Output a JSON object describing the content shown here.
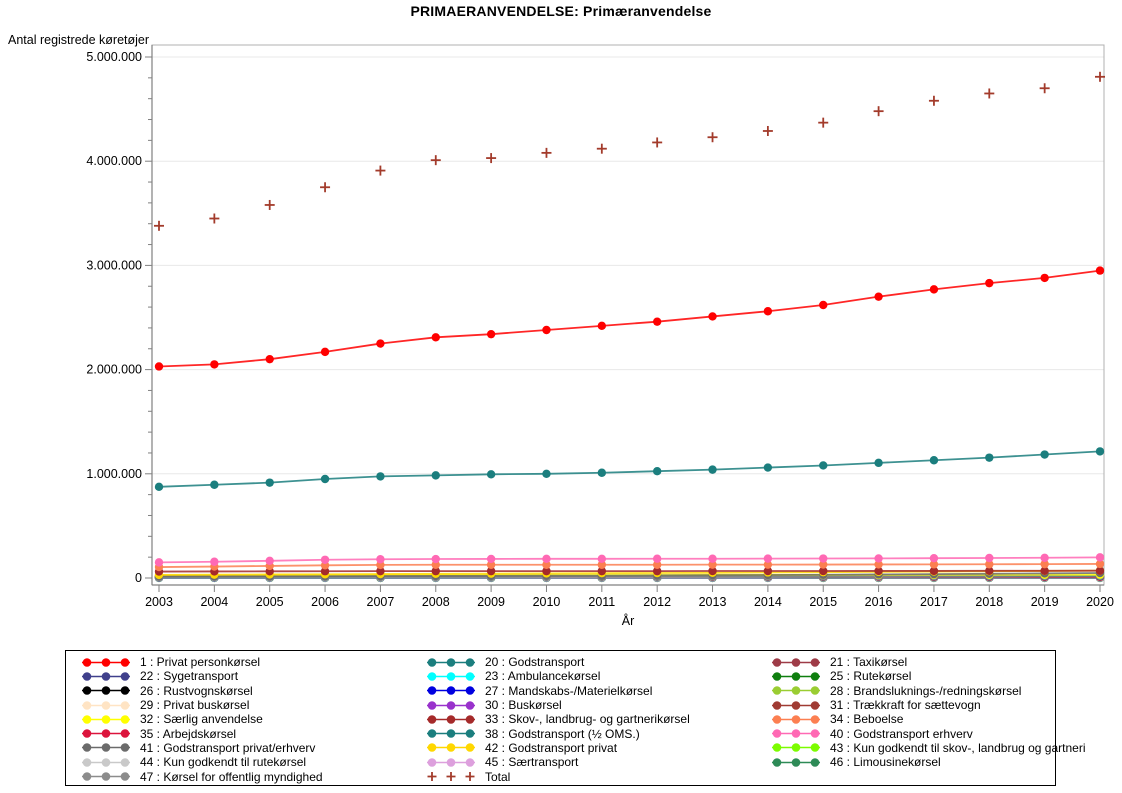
{
  "chart_data": {
    "type": "line",
    "title": "PRIMAERANVENDELSE: Primæranvendelse",
    "xlabel": "År",
    "ylabel": "Antal registrede køretøjer",
    "x": [
      2003,
      2004,
      2005,
      2006,
      2007,
      2008,
      2009,
      2010,
      2011,
      2012,
      2013,
      2014,
      2015,
      2016,
      2017,
      2018,
      2019,
      2020
    ],
    "ylim": [
      0,
      5000000
    ],
    "y_ticks": [
      {
        "v": 0,
        "label": "0"
      },
      {
        "v": 1000000,
        "label": "1.000.000"
      },
      {
        "v": 2000000,
        "label": "2.000.000"
      },
      {
        "v": 3000000,
        "label": "3.000.000"
      },
      {
        "v": 4000000,
        "label": "4.000.000"
      },
      {
        "v": 5000000,
        "label": "5.000.000"
      }
    ],
    "y_minor_step": 200000,
    "grid": "horizontal-major",
    "legend_position": "bottom",
    "frame_color": "#B0B0B0",
    "axis_color": "#808080",
    "grid_color": "#E8E8E8",
    "series": [
      {
        "code": "1",
        "label": "1 : Privat personkørsel",
        "color": "#FF0000",
        "marker": "circle",
        "values": [
          2030000,
          2050000,
          2100000,
          2170000,
          2250000,
          2310000,
          2340000,
          2380000,
          2420000,
          2460000,
          2510000,
          2560000,
          2620000,
          2700000,
          2770000,
          2830000,
          2880000,
          2950000
        ]
      },
      {
        "code": "20",
        "label": "20 : Godstransport",
        "color": "#1B7E7E",
        "marker": "circle",
        "values": [
          875000,
          895000,
          915000,
          950000,
          975000,
          985000,
          995000,
          1000000,
          1010000,
          1025000,
          1040000,
          1060000,
          1080000,
          1105000,
          1130000,
          1155000,
          1185000,
          1215000
        ]
      },
      {
        "code": "21",
        "label": "21 : Taxikørsel",
        "color": "#9E3B47",
        "marker": "circle",
        "values": [
          7000,
          7000,
          7000,
          7000,
          7000,
          7000,
          7000,
          6000,
          6000,
          6000,
          6000,
          6000,
          6000,
          6000,
          6000,
          5000,
          5000,
          5000
        ]
      },
      {
        "code": "22",
        "label": "22 : Sygetransport",
        "color": "#40408C",
        "marker": "circle",
        "values": [
          2000,
          2000,
          2000,
          2000,
          2000,
          2000,
          2000,
          2000,
          2000,
          2000,
          2000,
          2000,
          2000,
          2000,
          2000,
          2000,
          2000,
          2000
        ]
      },
      {
        "code": "23",
        "label": "23 : Ambulancekørsel",
        "color": "#00FFFF",
        "marker": "circle",
        "values": [
          2000,
          2000,
          2000,
          2000,
          2000,
          2000,
          2000,
          2000,
          2000,
          2000,
          2000,
          2000,
          2000,
          2000,
          2000,
          2000,
          2000,
          2000
        ]
      },
      {
        "code": "25",
        "label": "25 : Rutekørsel",
        "color": "#0F7F0F",
        "marker": "circle",
        "values": [
          5000,
          5000,
          5000,
          5000,
          5000,
          4000,
          4000,
          4000,
          4000,
          4000,
          4000,
          4000,
          3000,
          3000,
          3000,
          3000,
          3000,
          3000
        ]
      },
      {
        "code": "26",
        "label": "26 : Rustvognskørsel",
        "color": "#000000",
        "marker": "circle",
        "values": [
          4000,
          4000,
          4000,
          4000,
          4000,
          4000,
          4000,
          4000,
          4000,
          4000,
          4000,
          4000,
          4000,
          4000,
          4000,
          4000,
          4000,
          4000
        ]
      },
      {
        "code": "27",
        "label": "27 : Mandskabs-/Materielkørsel",
        "color": "#0000E0",
        "marker": "circle",
        "values": [
          3000,
          3000,
          3000,
          3000,
          3000,
          3000,
          3000,
          3000,
          3000,
          3000,
          3000,
          3000,
          3000,
          3000,
          3000,
          3000,
          3000,
          3000
        ]
      },
      {
        "code": "28",
        "label": "28 : Brandsluknings-/redningskørsel",
        "color": "#9ACD32",
        "marker": "circle",
        "values": [
          1000,
          1000,
          1000,
          1000,
          1000,
          1000,
          1000,
          1000,
          1000,
          1000,
          1000,
          1000,
          1000,
          1000,
          1000,
          1000,
          1000,
          1000
        ]
      },
      {
        "code": "29",
        "label": "29 : Privat buskørsel",
        "color": "#FFE4C4",
        "marker": "circle",
        "values": [
          2000,
          2000,
          2000,
          2000,
          2000,
          2000,
          2000,
          2000,
          2000,
          2000,
          2000,
          2000,
          2000,
          2000,
          2000,
          2000,
          2000,
          2000
        ]
      },
      {
        "code": "30",
        "label": "30 : Buskørsel",
        "color": "#9932CC",
        "marker": "circle",
        "values": [
          9000,
          9000,
          9000,
          9000,
          9000,
          8000,
          8000,
          8000,
          8000,
          8000,
          8000,
          7000,
          7000,
          7000,
          7000,
          7000,
          7000,
          7000
        ]
      },
      {
        "code": "31",
        "label": "31 : Trækkraft for sættevogn",
        "color": "#A03B33",
        "marker": "circle",
        "values": [
          12000,
          12000,
          12000,
          12000,
          12000,
          12000,
          12000,
          12000,
          12000,
          12000,
          12000,
          12000,
          12000,
          13000,
          13000,
          13000,
          13000,
          14000
        ]
      },
      {
        "code": "32",
        "label": "32 : Særlig anvendelse",
        "color": "#FFFF00",
        "marker": "circle",
        "values": [
          25000,
          26000,
          27000,
          28000,
          29000,
          29000,
          29000,
          29000,
          29000,
          29000,
          30000,
          30000,
          30000,
          30000,
          31000,
          31000,
          31000,
          32000
        ]
      },
      {
        "code": "33",
        "label": "33 : Skov-, landbrug- og gartnerikørsel",
        "color": "#A52A2A",
        "marker": "circle",
        "values": [
          62000,
          63000,
          64000,
          65000,
          66000,
          66000,
          66000,
          66000,
          66000,
          66000,
          67000,
          67000,
          67000,
          68000,
          68000,
          69000,
          69000,
          70000
        ]
      },
      {
        "code": "34",
        "label": "34 : Beboelse",
        "color": "#FC7F51",
        "marker": "circle",
        "values": [
          105000,
          110000,
          116000,
          122000,
          126000,
          127000,
          127000,
          127000,
          127000,
          127000,
          128000,
          128000,
          129000,
          130000,
          131000,
          132000,
          133000,
          135000
        ]
      },
      {
        "code": "35",
        "label": "35 : Arbejdskørsel",
        "color": "#DC143C",
        "marker": "circle",
        "values": [
          18000,
          18000,
          17000,
          17000,
          16000,
          16000,
          15000,
          15000,
          14000,
          14000,
          13000,
          13000,
          12000,
          12000,
          11000,
          11000,
          10000,
          10000
        ]
      },
      {
        "code": "38",
        "label": "38 : Godstransport (½ OMS.)",
        "color": "#1B7E7E",
        "marker": "circle",
        "values": [
          10000,
          10000,
          11000,
          11000,
          12000,
          12000,
          12000,
          13000,
          13000,
          13000,
          14000,
          14000,
          14000,
          15000,
          15000,
          15000,
          16000,
          16000
        ]
      },
      {
        "code": "40",
        "label": "40 : Godstransport erhverv",
        "color": "#FF69B4",
        "marker": "circle",
        "values": [
          150000,
          156000,
          165000,
          175000,
          180000,
          182000,
          183000,
          184000,
          184000,
          185000,
          185000,
          186000,
          187000,
          188000,
          190000,
          192000,
          194000,
          198000
        ]
      },
      {
        "code": "41",
        "label": "41 : Godstransport privat/erhverv",
        "color": "#6B6B6B",
        "marker": "circle",
        "values": [
          15000,
          16000,
          17000,
          18000,
          19000,
          20000,
          21000,
          22000,
          23000,
          25000,
          27000,
          29000,
          31000,
          34000,
          37000,
          40000,
          44000,
          48000
        ]
      },
      {
        "code": "42",
        "label": "42 : Godstransport privat",
        "color": "#FFD700",
        "marker": "circle",
        "values": [
          30000,
          32000,
          34000,
          36000,
          38000,
          40000,
          42000,
          44000,
          46000,
          48000,
          50000,
          53000,
          56000,
          59000,
          62000,
          65000,
          68000,
          71000
        ]
      },
      {
        "code": "43",
        "label": "43 : Kun godkendt til skov-, landbrug og gartneri",
        "color": "#7CFC00",
        "marker": "circle",
        "values": [
          1000,
          1000,
          1000,
          1000,
          1000,
          1000,
          1000,
          1000,
          1000,
          1000,
          1000,
          1000,
          1000,
          1000,
          1000,
          1000,
          1000,
          1000
        ]
      },
      {
        "code": "44",
        "label": "44 : Kun godkendt til rutekørsel",
        "color": "#C9C9C9",
        "marker": "circle",
        "values": [
          5000,
          5000,
          5000,
          5000,
          5000,
          5000,
          5000,
          5000,
          5000,
          5000,
          5000,
          5000,
          5000,
          5000,
          5000,
          5000,
          5000,
          5000
        ]
      },
      {
        "code": "45",
        "label": "45 : Særtransport",
        "color": "#DDA0DD",
        "marker": "circle",
        "values": [
          3000,
          3000,
          3000,
          3000,
          3000,
          3000,
          3000,
          3000,
          3000,
          3000,
          3000,
          3000,
          3000,
          3000,
          3000,
          3000,
          3000,
          3000
        ]
      },
      {
        "code": "46",
        "label": "46 : Limousinekørsel",
        "color": "#2E8B57",
        "marker": "circle",
        "values": [
          1000,
          1000,
          1000,
          1000,
          1000,
          1000,
          1000,
          1000,
          1000,
          1000,
          1000,
          1000,
          1000,
          1000,
          1000,
          1000,
          1000,
          1000
        ]
      },
      {
        "code": "47",
        "label": "47 : Kørsel for offentlig myndighed",
        "color": "#8C8C8C",
        "marker": "circle",
        "values": [
          8000,
          9000,
          10000,
          11000,
          12000,
          12000,
          13000,
          13000,
          14000,
          14000,
          15000,
          16000,
          17000,
          18000,
          19000,
          20000,
          21000,
          22000
        ]
      },
      {
        "code": "Total",
        "label": "Total",
        "color": "#A33B2B",
        "marker": "plus",
        "values": [
          3380000,
          3450000,
          3580000,
          3750000,
          3910000,
          4010000,
          4030000,
          4080000,
          4120000,
          4180000,
          4230000,
          4290000,
          4370000,
          4480000,
          4580000,
          4650000,
          4700000,
          4810000
        ]
      }
    ],
    "draw_order": [
      "46",
      "43",
      "28",
      "29",
      "23",
      "22",
      "45",
      "27",
      "26",
      "25",
      "21",
      "30",
      "44",
      "31",
      "35",
      "38",
      "47",
      "32",
      "41",
      "42",
      "33",
      "34",
      "40",
      "20",
      "1",
      "Total"
    ],
    "legend_columns": [
      [
        "1",
        "22",
        "26",
        "29",
        "32",
        "35",
        "41",
        "44",
        "47"
      ],
      [
        "20",
        "23",
        "27",
        "30",
        "33",
        "38",
        "42",
        "45",
        "Total"
      ],
      [
        "21",
        "25",
        "28",
        "31",
        "34",
        "40",
        "43",
        "46"
      ]
    ]
  }
}
